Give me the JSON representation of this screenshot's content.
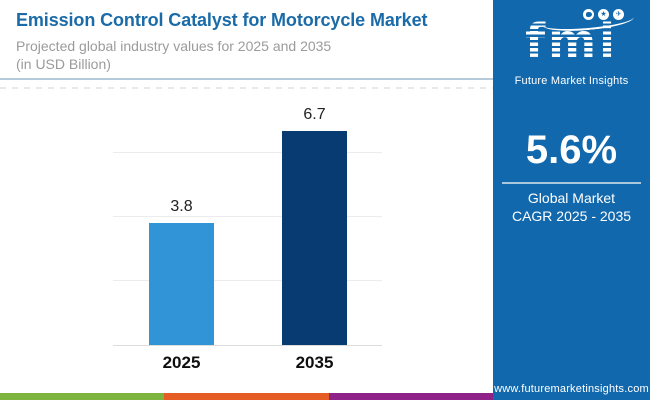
{
  "header": {
    "title": "Emission Control Catalyst for Motorcycle Market",
    "subtitle_line1": "Projected global industry values for 2025 and 2035",
    "subtitle_line2": "(in USD Billion)"
  },
  "chart_data": {
    "type": "bar",
    "title": "Emission Control Catalyst for Motorcycle Market",
    "subtitle": "Projected global industry values for 2025 and 2035 (in USD Billion)",
    "categories": [
      "2025",
      "2035"
    ],
    "values": [
      3.8,
      6.7
    ],
    "bar_colors": [
      "#3094d6",
      "#083b72"
    ],
    "xlabel": "",
    "ylabel": "USD Billion",
    "ylim": [
      0,
      8
    ],
    "gridline_values": [
      2,
      4,
      6
    ],
    "grid": "horizontal-light",
    "legend": "none"
  },
  "sidebar": {
    "background": "#1268ad",
    "logo": {
      "text": "fmi",
      "tagline": "Future Market Insights",
      "icons": [
        "map-icon",
        "compass-star-icon",
        "globe-plane-icon"
      ]
    },
    "stat": {
      "value": "5.6%",
      "label_line1": "Global Market",
      "label_line2": "CAGR 2025 - 2035"
    },
    "website": "www.futuremarketinsights.com"
  },
  "footer": {
    "stripe_colors": [
      "#7db440",
      "#e55d25",
      "#8e2288"
    ]
  },
  "colors": {
    "title_blue": "#1a6ba8",
    "subtitle_gray": "#9b9b9b",
    "header_divider": "#b5cbd9",
    "bar_2025": "#3094d6",
    "bar_2035": "#083b72",
    "sidebar_blue": "#1268ad"
  }
}
